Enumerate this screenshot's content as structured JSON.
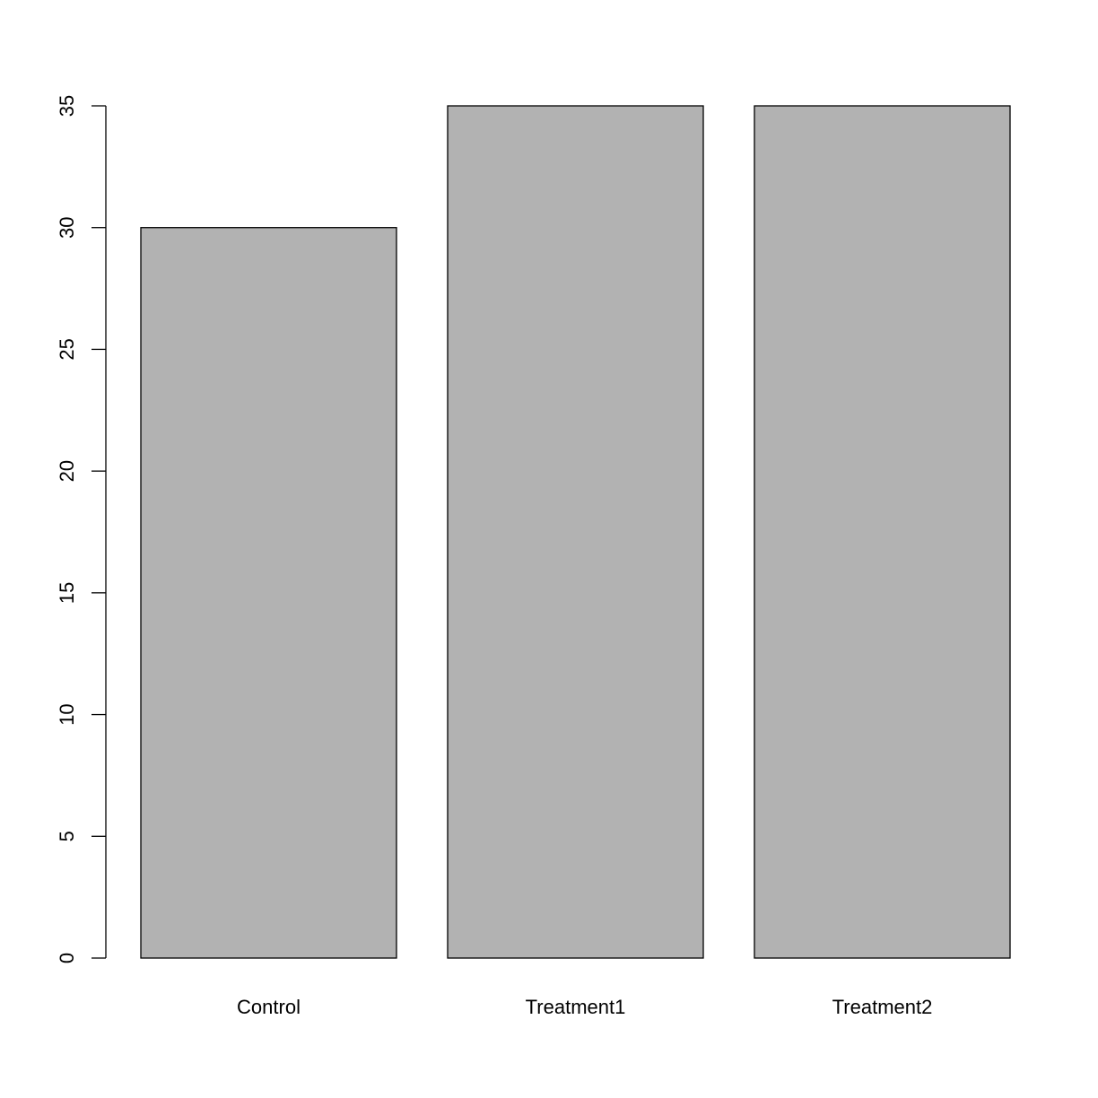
{
  "chart_data": {
    "type": "bar",
    "title": "",
    "xlabel": "",
    "ylabel": "",
    "categories": [
      "Control",
      "Treatment1",
      "Treatment2"
    ],
    "values": [
      30,
      35,
      35
    ],
    "ylim": [
      0,
      35
    ],
    "yticks": [
      "0",
      "5",
      "10",
      "15",
      "20",
      "25",
      "30",
      "35"
    ],
    "grid": false,
    "bar_color": "#b2b2b2",
    "border_color": "#000000"
  }
}
